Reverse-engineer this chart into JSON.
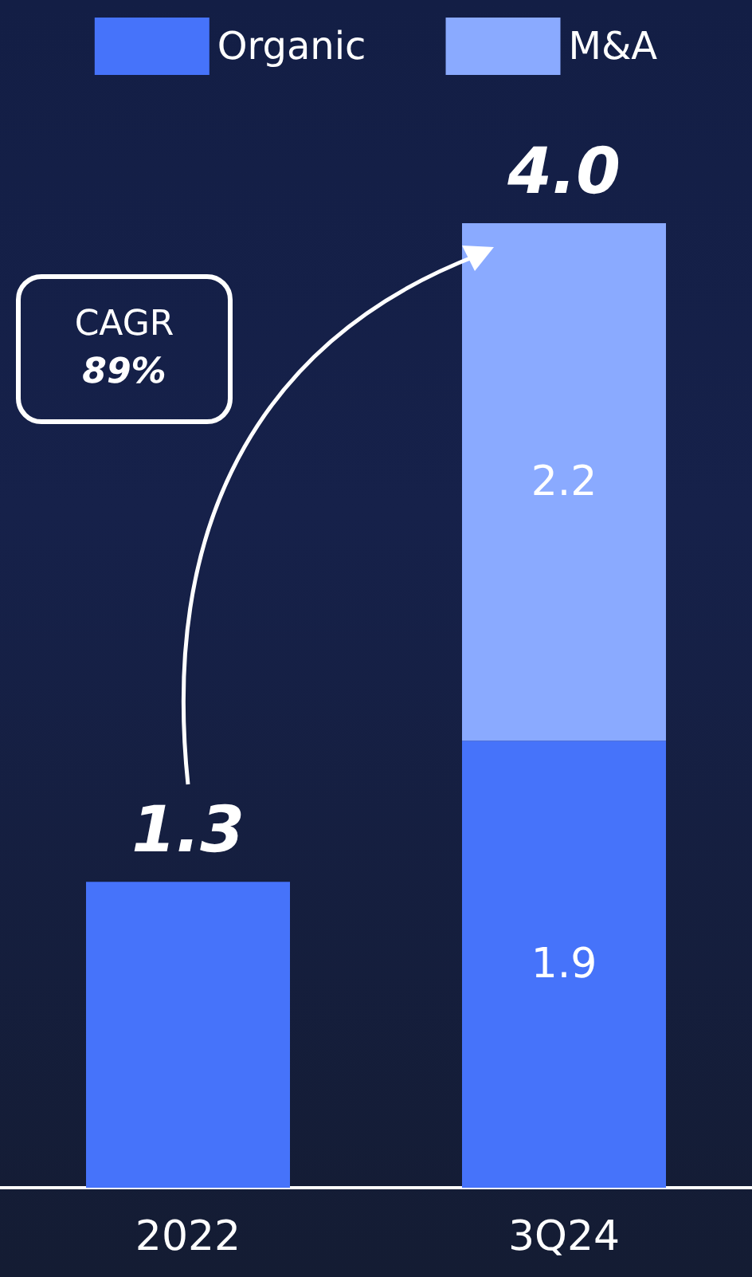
{
  "chart_data": {
    "type": "bar",
    "stacked": true,
    "legend": "top",
    "categories": [
      "2022",
      "3Q24"
    ],
    "series": [
      {
        "name": "Organic",
        "color": "#4673fa",
        "values": [
          1.3,
          1.9
        ],
        "value_labels": [
          null,
          "1.9"
        ]
      },
      {
        "name": "M&A",
        "color": "#8aaaff",
        "values": [
          null,
          2.2
        ],
        "value_labels": [
          null,
          "2.2"
        ]
      }
    ],
    "totals": [
      "1.3",
      "4.0"
    ],
    "annotations": [
      "CAGR",
      "89%"
    ]
  }
}
